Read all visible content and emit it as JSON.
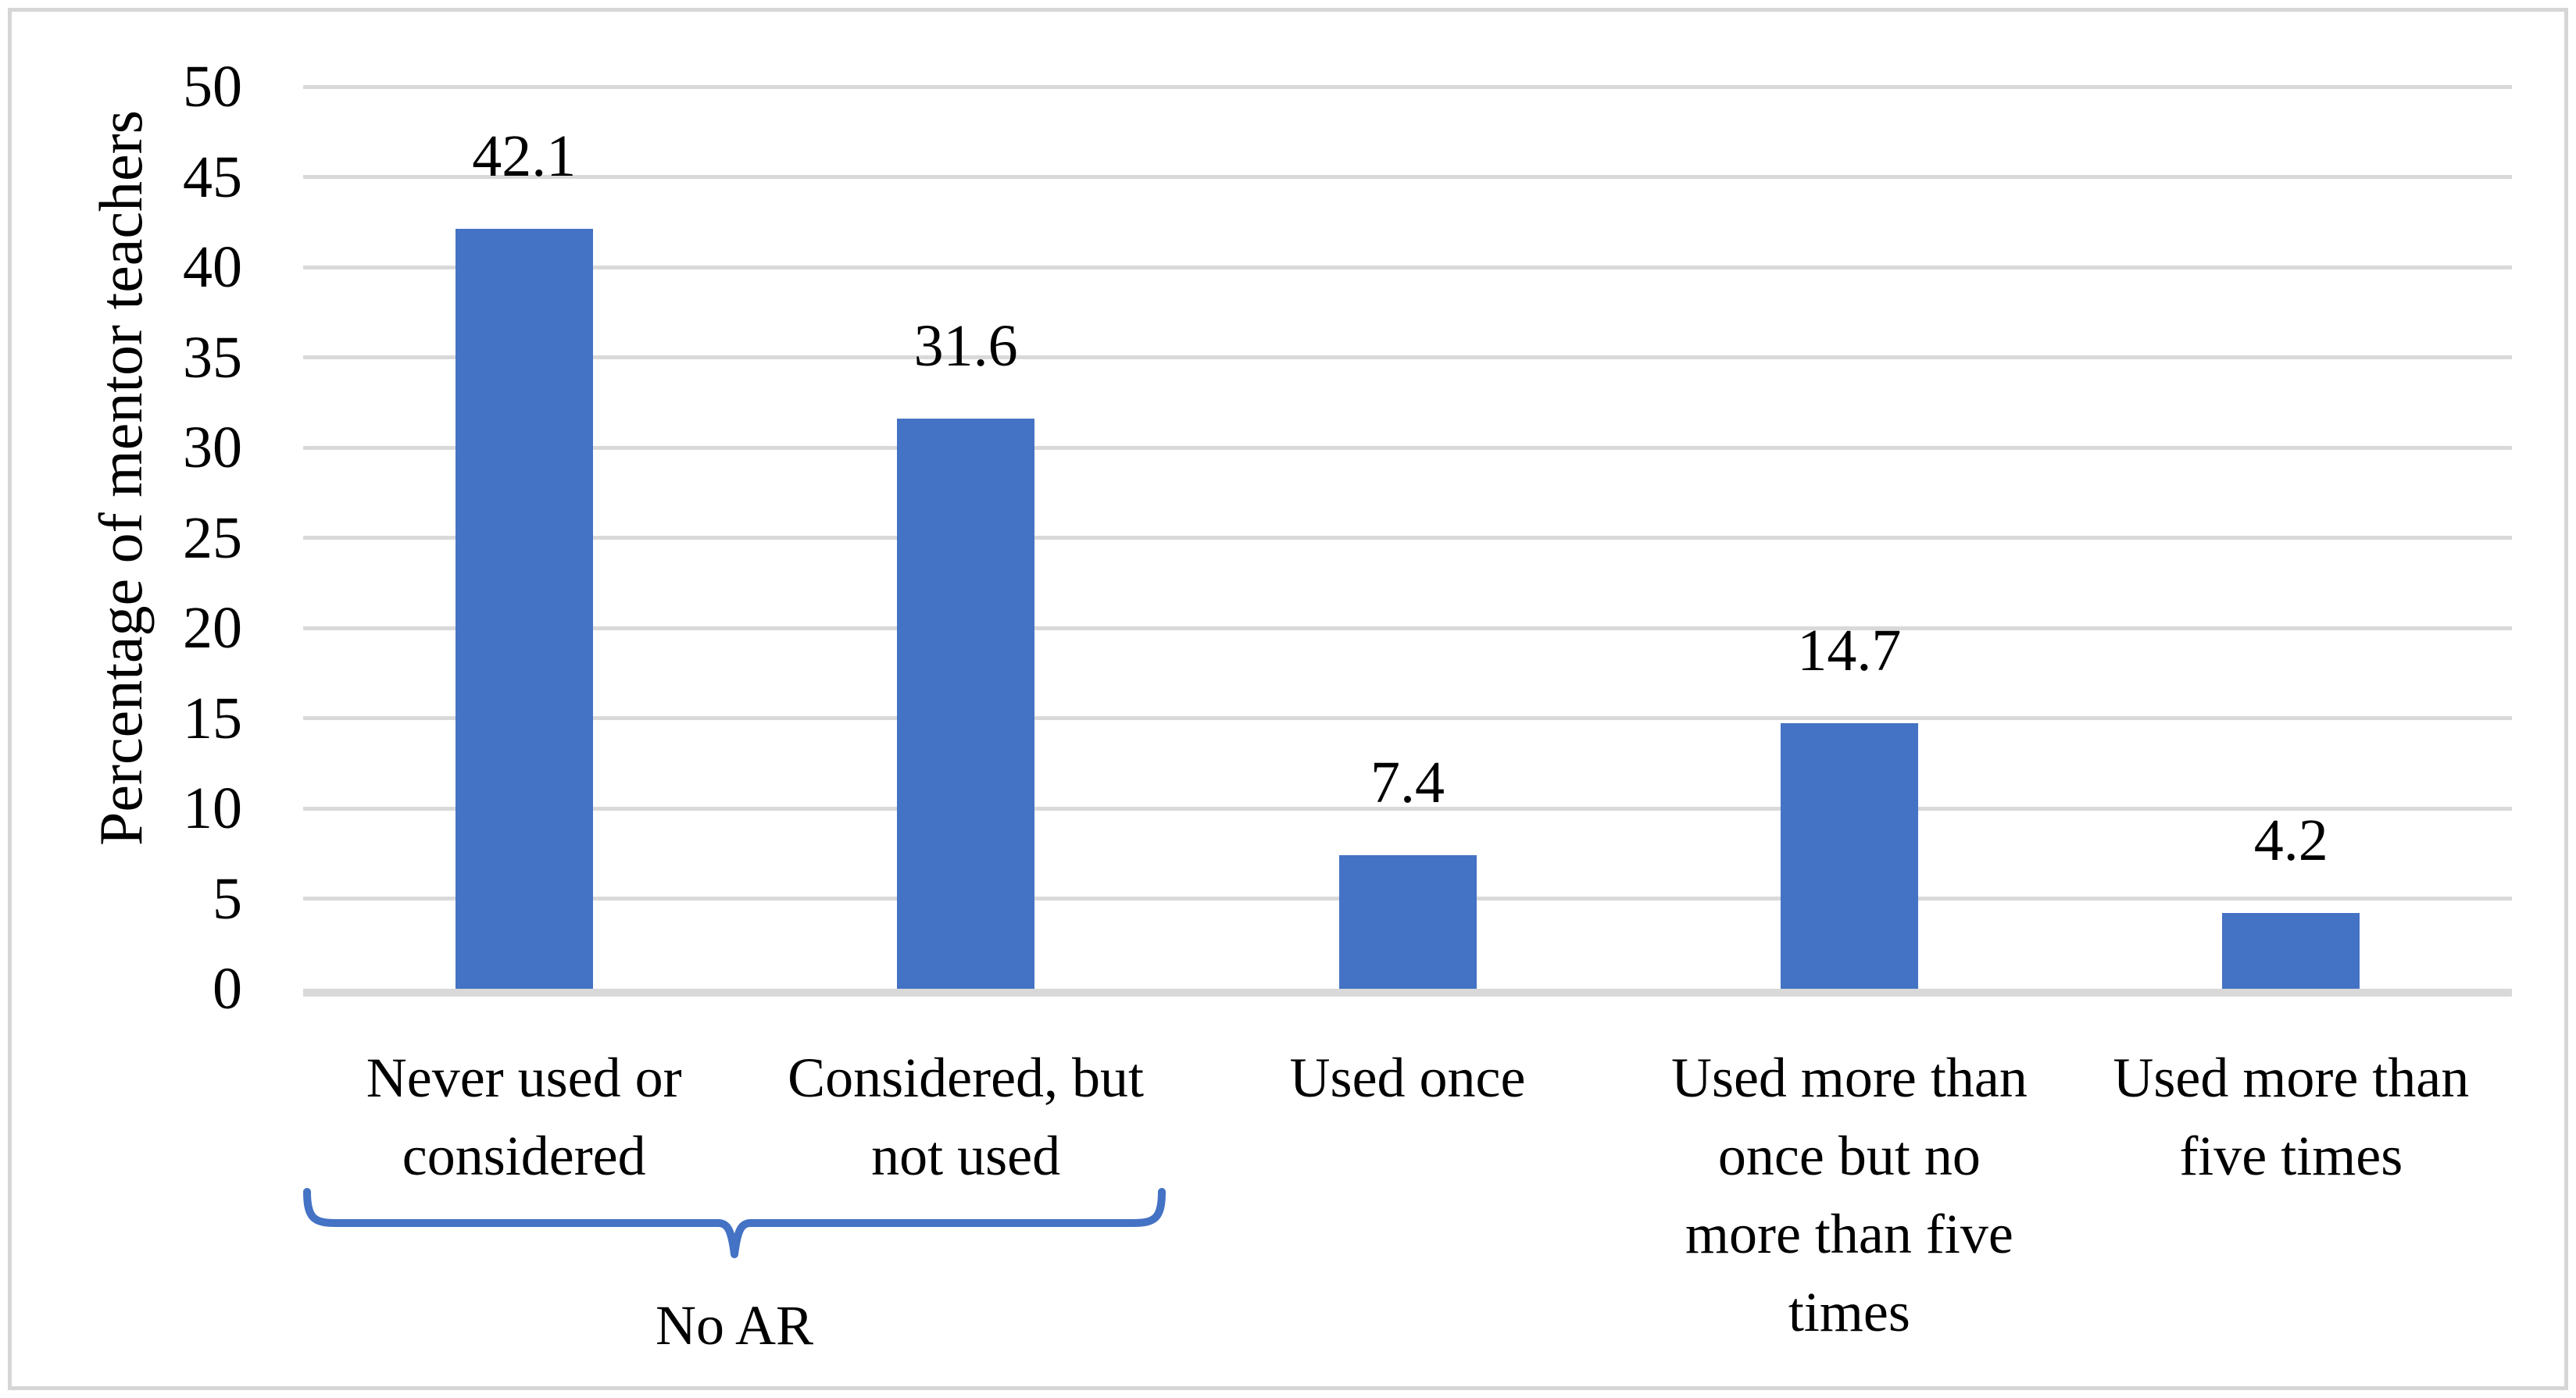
{
  "chart_data": {
    "type": "bar",
    "title": "",
    "ylabel": "Percentage of mentor teachers",
    "xlabel": "",
    "ylim": [
      0,
      50
    ],
    "yticks": [
      0,
      5,
      10,
      15,
      20,
      25,
      30,
      35,
      40,
      45,
      50
    ],
    "grid": true,
    "legend": "none",
    "categories": [
      "Never used or\nconsidered",
      "Considered, but\nnot used",
      "Used once",
      "Used more than\nonce but no\nmore than five\ntimes",
      "Used more than\nfive times"
    ],
    "values": [
      42.1,
      31.6,
      7.4,
      14.7,
      4.2
    ],
    "bar_color": "#4472c4",
    "gridline_color": "#d9d9d9",
    "axis_line_color": "#d9d9d9",
    "text_color": "#000000",
    "annotation": {
      "label": "No AR",
      "applies_to": [
        "Never used or considered",
        "Considered, but not used"
      ],
      "brace_color": "#4472c4"
    }
  }
}
